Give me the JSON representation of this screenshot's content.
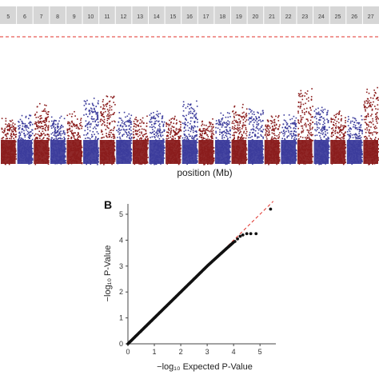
{
  "panel_b_label": "B",
  "manhattan": {
    "chromosomes": [
      "5",
      "6",
      "7",
      "8",
      "9",
      "10",
      "11",
      "12",
      "13",
      "14",
      "15",
      "16",
      "17",
      "18",
      "19",
      "20",
      "21",
      "22",
      "23",
      "24",
      "25",
      "26",
      "27"
    ],
    "xlabel": "position (Mb)",
    "colors": {
      "strip": "#d6d6d6",
      "strip_text": "#3a3a3a",
      "series_a": "#8a1c1c",
      "series_b": "#3c3c9c",
      "threshold": "#e0322a"
    },
    "peaks": [
      0.4,
      0.44,
      0.55,
      0.41,
      0.47,
      0.61,
      0.7,
      0.46,
      0.4,
      0.5,
      0.42,
      0.58,
      0.37,
      0.45,
      0.54,
      0.51,
      0.46,
      0.43,
      0.72,
      0.55,
      0.48,
      0.41,
      0.74
    ]
  },
  "chart_data": {
    "type": "scatter",
    "xlabel": "−log₁₀ Expected P-Value",
    "ylabel": "−log₁₀ P-Value",
    "xlim": [
      0,
      5.6
    ],
    "ylim": [
      0,
      5.4
    ],
    "xticks": [
      0,
      1,
      2,
      3,
      4,
      5
    ],
    "yticks": [
      0,
      1,
      2,
      3,
      4,
      5
    ],
    "reference_line": {
      "x": [
        0,
        5.5
      ],
      "y": [
        0,
        5.5
      ],
      "color": "#e0322a",
      "style": "dashed"
    },
    "tail_points": [
      {
        "x": 4.05,
        "y": 3.95
      },
      {
        "x": 4.15,
        "y": 4.05
      },
      {
        "x": 4.25,
        "y": 4.15
      },
      {
        "x": 4.35,
        "y": 4.2
      },
      {
        "x": 4.5,
        "y": 4.25
      },
      {
        "x": 4.65,
        "y": 4.25
      },
      {
        "x": 4.85,
        "y": 4.25
      },
      {
        "x": 5.4,
        "y": 5.2
      }
    ]
  }
}
